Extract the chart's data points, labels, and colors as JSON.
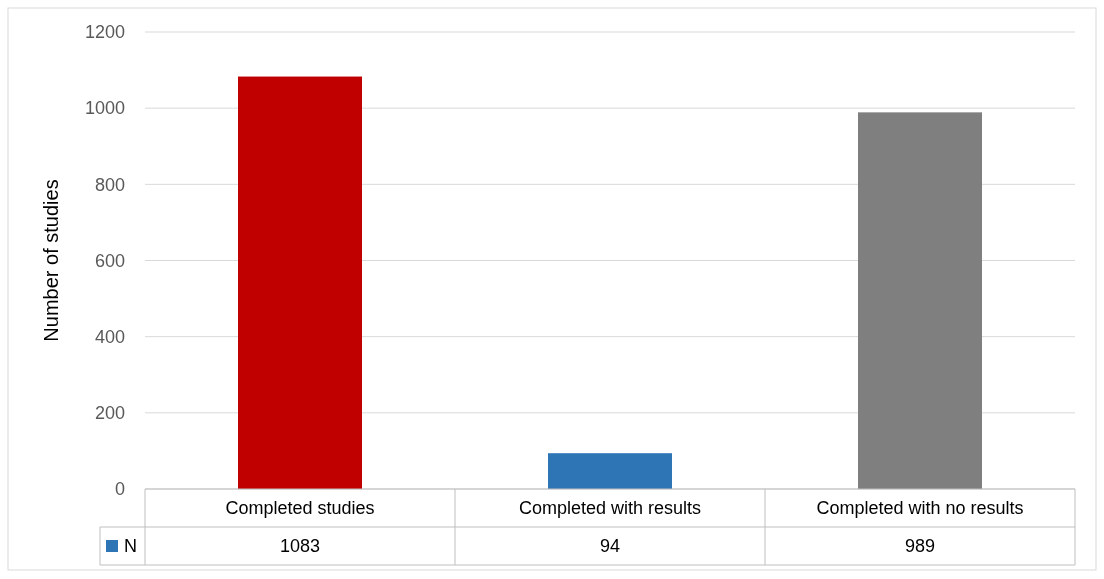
{
  "chart_data": {
    "type": "bar",
    "ylabel": "Number of studies",
    "categories": [
      "Completed studies",
      "Completed with results",
      "Completed with no results"
    ],
    "series": [
      {
        "name": "N",
        "color": "#2e75b6",
        "colors": [
          "#c00000",
          "#2e75b6",
          "#7f7f7f"
        ],
        "values": [
          1083,
          94,
          989
        ]
      }
    ],
    "ylim": [
      0,
      1200
    ],
    "yticks": [
      0,
      200,
      400,
      600,
      800,
      1000,
      1200
    ],
    "grid": "y",
    "data_labels": true,
    "legend": "bottom"
  }
}
